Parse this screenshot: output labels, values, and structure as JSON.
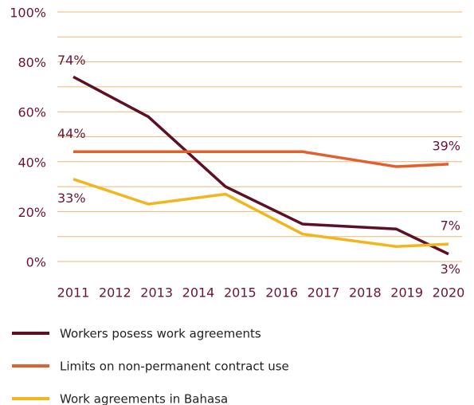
{
  "chart_data": {
    "type": "line",
    "x": [
      2011,
      2012.8,
      2014.65,
      2016.5,
      2018.75,
      2020
    ],
    "xlim": [
      2011,
      2020
    ],
    "xticks": [
      2011,
      2012,
      2013,
      2014,
      2015,
      2016,
      2017,
      2018,
      2019,
      2020
    ],
    "ylim": [
      0,
      100
    ],
    "yticks": [
      {
        "value": 0,
        "label": "0%"
      },
      {
        "value": 20,
        "label": "20%"
      },
      {
        "value": 40,
        "label": "40%"
      },
      {
        "value": 60,
        "label": "60%"
      },
      {
        "value": 80,
        "label": "80%"
      },
      {
        "value": 100,
        "label": "100%"
      }
    ],
    "minor_yticks": [
      10,
      30,
      50,
      70,
      90
    ],
    "grid": true,
    "series": [
      {
        "name": "Workers posess work agreements",
        "color": "#5c0f25",
        "values": [
          74,
          58,
          30,
          15,
          13,
          3
        ],
        "value_labels": [
          "74%",
          null,
          null,
          null,
          null,
          "3%"
        ]
      },
      {
        "name": "Limits on non-permanent contract use",
        "color": "#e0612e",
        "values": [
          44,
          44,
          44,
          44,
          38,
          39
        ],
        "value_labels": [
          "44%",
          null,
          null,
          null,
          null,
          "39%"
        ]
      },
      {
        "name": "Work agreements in Bahasa",
        "color": "#f2b51c",
        "values": [
          33,
          23,
          27,
          11,
          6,
          7
        ],
        "value_labels": [
          "33%",
          null,
          null,
          null,
          null,
          "7%"
        ]
      }
    ]
  }
}
